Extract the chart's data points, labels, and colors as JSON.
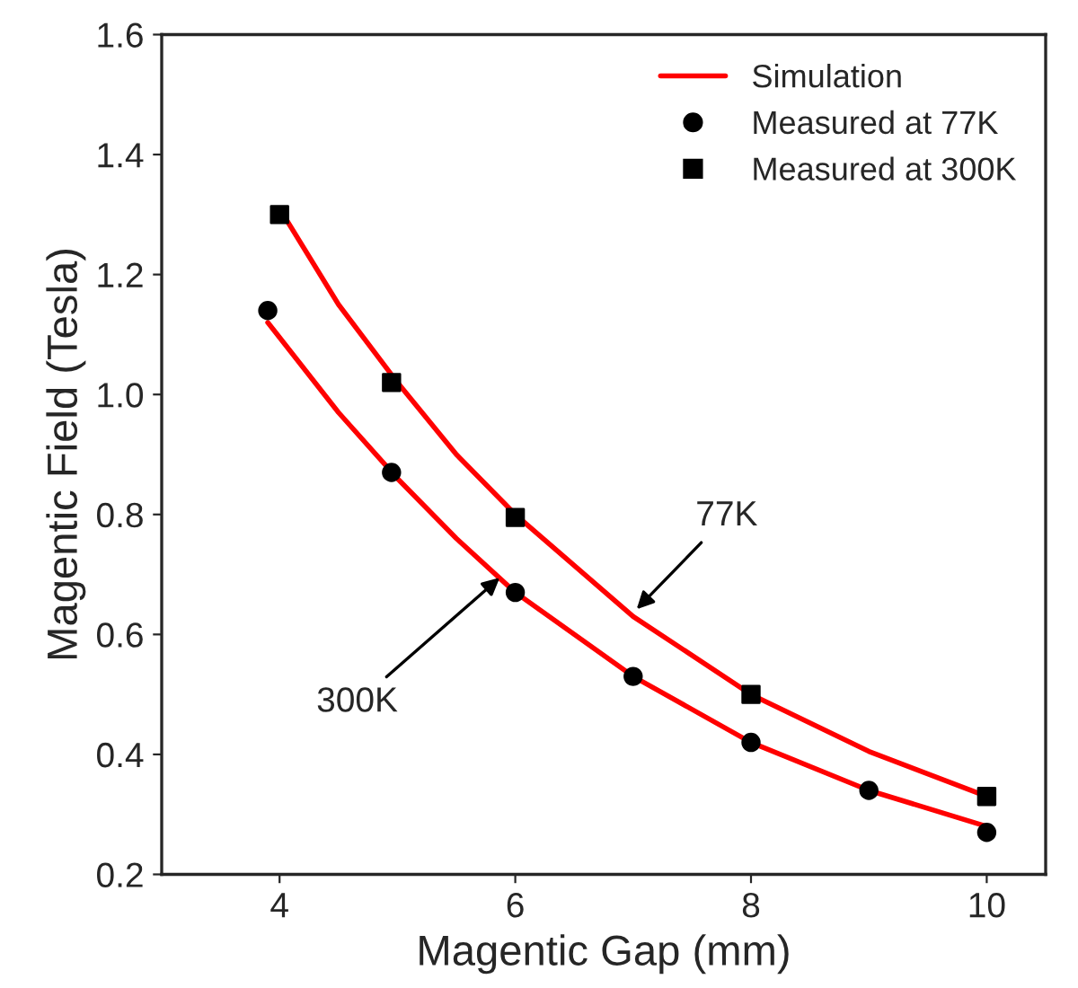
{
  "chart_data": {
    "type": "line",
    "xlabel": "Magentic Gap (mm)",
    "ylabel": "Magentic Field (Tesla)",
    "xlim": [
      3,
      10.5
    ],
    "xticks": [
      4,
      6,
      8,
      10
    ],
    "ylim": [
      0.2,
      1.6
    ],
    "yticks": [
      0.2,
      0.4,
      0.6,
      0.8,
      {
        "value": 1,
        "label": "1.0"
      },
      1.2,
      1.4,
      1.6
    ],
    "grid": false,
    "legend": "top right",
    "series": [
      {
        "name": "Simulation",
        "color": "#ff0000",
        "x": [
          4,
          4.5,
          5,
          5.5,
          6,
          7,
          8,
          9,
          10
        ],
        "values": [
          1.31,
          1.15,
          1.02,
          0.9,
          0.8,
          0.63,
          0.5,
          0.405,
          0.33
        ]
      },
      {
        "color": "#ff0000",
        "x": [
          3.9,
          4.5,
          5,
          5.5,
          6,
          7,
          8,
          9,
          10
        ],
        "values": [
          1.12,
          0.97,
          0.86,
          0.76,
          0.67,
          0.53,
          0.42,
          0.34,
          0.28
        ]
      },
      {
        "name": "Measured at 77K",
        "type": "scatter",
        "marker": "circle",
        "color": "#000000",
        "x": [
          3.9,
          4.95,
          6,
          7,
          8,
          9,
          10
        ],
        "values": [
          1.14,
          0.87,
          0.67,
          0.53,
          0.42,
          0.34,
          0.27
        ]
      },
      {
        "name": "Measured at 300K",
        "type": "scatter",
        "marker": "square",
        "color": "#000000",
        "x": [
          4,
          4.95,
          6,
          8,
          10
        ],
        "values": [
          1.3,
          1.02,
          0.795,
          0.5,
          0.33
        ]
      }
    ],
    "annotations": [
      {
        "text": "77K",
        "x": 7.0,
        "y": 0.636
      },
      {
        "text": "300K",
        "x": 5.9,
        "y": 0.7
      }
    ]
  }
}
